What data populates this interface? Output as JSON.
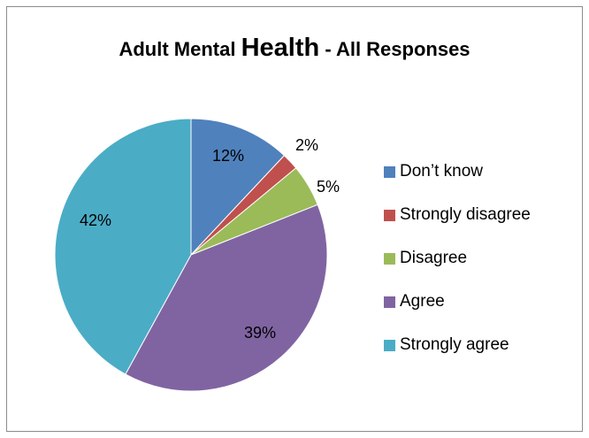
{
  "chart_data": {
    "type": "pie",
    "title_parts": [
      "Adult Mental ",
      "Health",
      " - All Responses"
    ],
    "categories": [
      "Don’t know",
      "Strongly disagree",
      "Disagree",
      "Agree",
      "Strongly agree"
    ],
    "values": [
      12,
      2,
      5,
      39,
      42
    ],
    "data_labels": [
      "12%",
      "2%",
      "5%",
      "39%",
      "42%"
    ],
    "colors": [
      "#4f81bd",
      "#c0504d",
      "#9bbb59",
      "#8064a2",
      "#4bacc6"
    ],
    "start_angle_deg": 0,
    "direction": "clockwise",
    "legend_position": "right"
  }
}
